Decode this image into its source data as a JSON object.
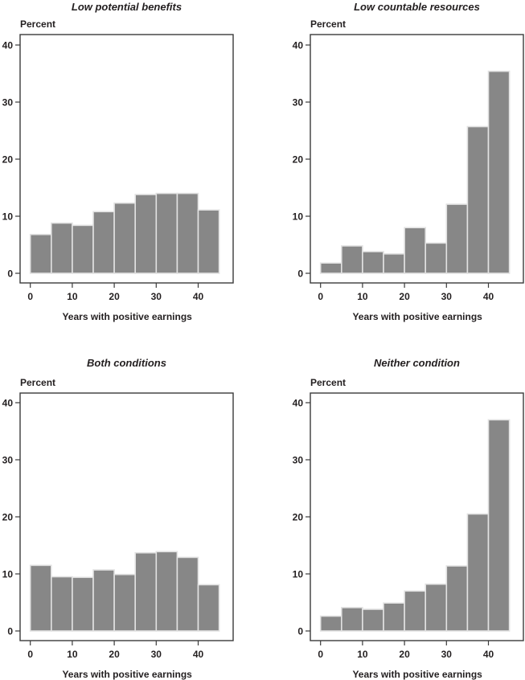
{
  "chart_data": [
    {
      "type": "bar",
      "title": "Low potential benefits",
      "xlabel": "Years with positive earnings",
      "ylabel": "Percent",
      "bin_width": 5,
      "bin_starts": [
        0,
        5,
        10,
        15,
        20,
        25,
        30,
        35,
        40
      ],
      "values": [
        6.8,
        8.8,
        8.4,
        10.8,
        12.3,
        13.8,
        14.0,
        14.0,
        11.1
      ],
      "ylim": [
        0,
        40
      ],
      "xlim": [
        0,
        45
      ],
      "yticks": [
        "0",
        "10",
        "20",
        "30",
        "40"
      ],
      "xticks": [
        "0",
        "10",
        "20",
        "30",
        "40"
      ],
      "grid": false
    },
    {
      "type": "bar",
      "title": "Low countable resources",
      "xlabel": "Years with positive earnings",
      "ylabel": "Percent",
      "bin_width": 5,
      "bin_starts": [
        0,
        5,
        10,
        15,
        20,
        25,
        30,
        35,
        40
      ],
      "values": [
        1.8,
        4.8,
        3.8,
        3.4,
        8.0,
        5.3,
        12.1,
        25.7,
        35.4
      ],
      "ylim": [
        0,
        40
      ],
      "xlim": [
        0,
        45
      ],
      "yticks": [
        "0",
        "10",
        "20",
        "30",
        "40"
      ],
      "xticks": [
        "0",
        "10",
        "20",
        "30",
        "40"
      ],
      "grid": false
    },
    {
      "type": "bar",
      "title": "Both conditions",
      "xlabel": "Years with positive earnings",
      "ylabel": "Percent",
      "bin_width": 5,
      "bin_starts": [
        0,
        5,
        10,
        15,
        20,
        25,
        30,
        35,
        40
      ],
      "values": [
        11.5,
        9.5,
        9.4,
        10.7,
        9.9,
        13.7,
        13.9,
        12.9,
        8.1
      ],
      "ylim": [
        0,
        40
      ],
      "xlim": [
        0,
        45
      ],
      "yticks": [
        "0",
        "10",
        "20",
        "30",
        "40"
      ],
      "xticks": [
        "0",
        "10",
        "20",
        "30",
        "40"
      ],
      "grid": false
    },
    {
      "type": "bar",
      "title": "Neither condition",
      "xlabel": "Years with positive earnings",
      "ylabel": "Percent",
      "bin_width": 5,
      "bin_starts": [
        0,
        5,
        10,
        15,
        20,
        25,
        30,
        35,
        40
      ],
      "values": [
        2.6,
        4.1,
        3.8,
        4.9,
        7.0,
        8.2,
        11.4,
        20.5,
        37.0
      ],
      "ylim": [
        0,
        40
      ],
      "xlim": [
        0,
        45
      ],
      "yticks": [
        "0",
        "10",
        "20",
        "30",
        "40"
      ],
      "xticks": [
        "0",
        "10",
        "20",
        "30",
        "40"
      ],
      "grid": false
    }
  ],
  "colors": {
    "bar_fill": "#878787",
    "bar_edge": "#e2e2e2",
    "axis": "#3a3a3a",
    "text": "#231f20"
  }
}
